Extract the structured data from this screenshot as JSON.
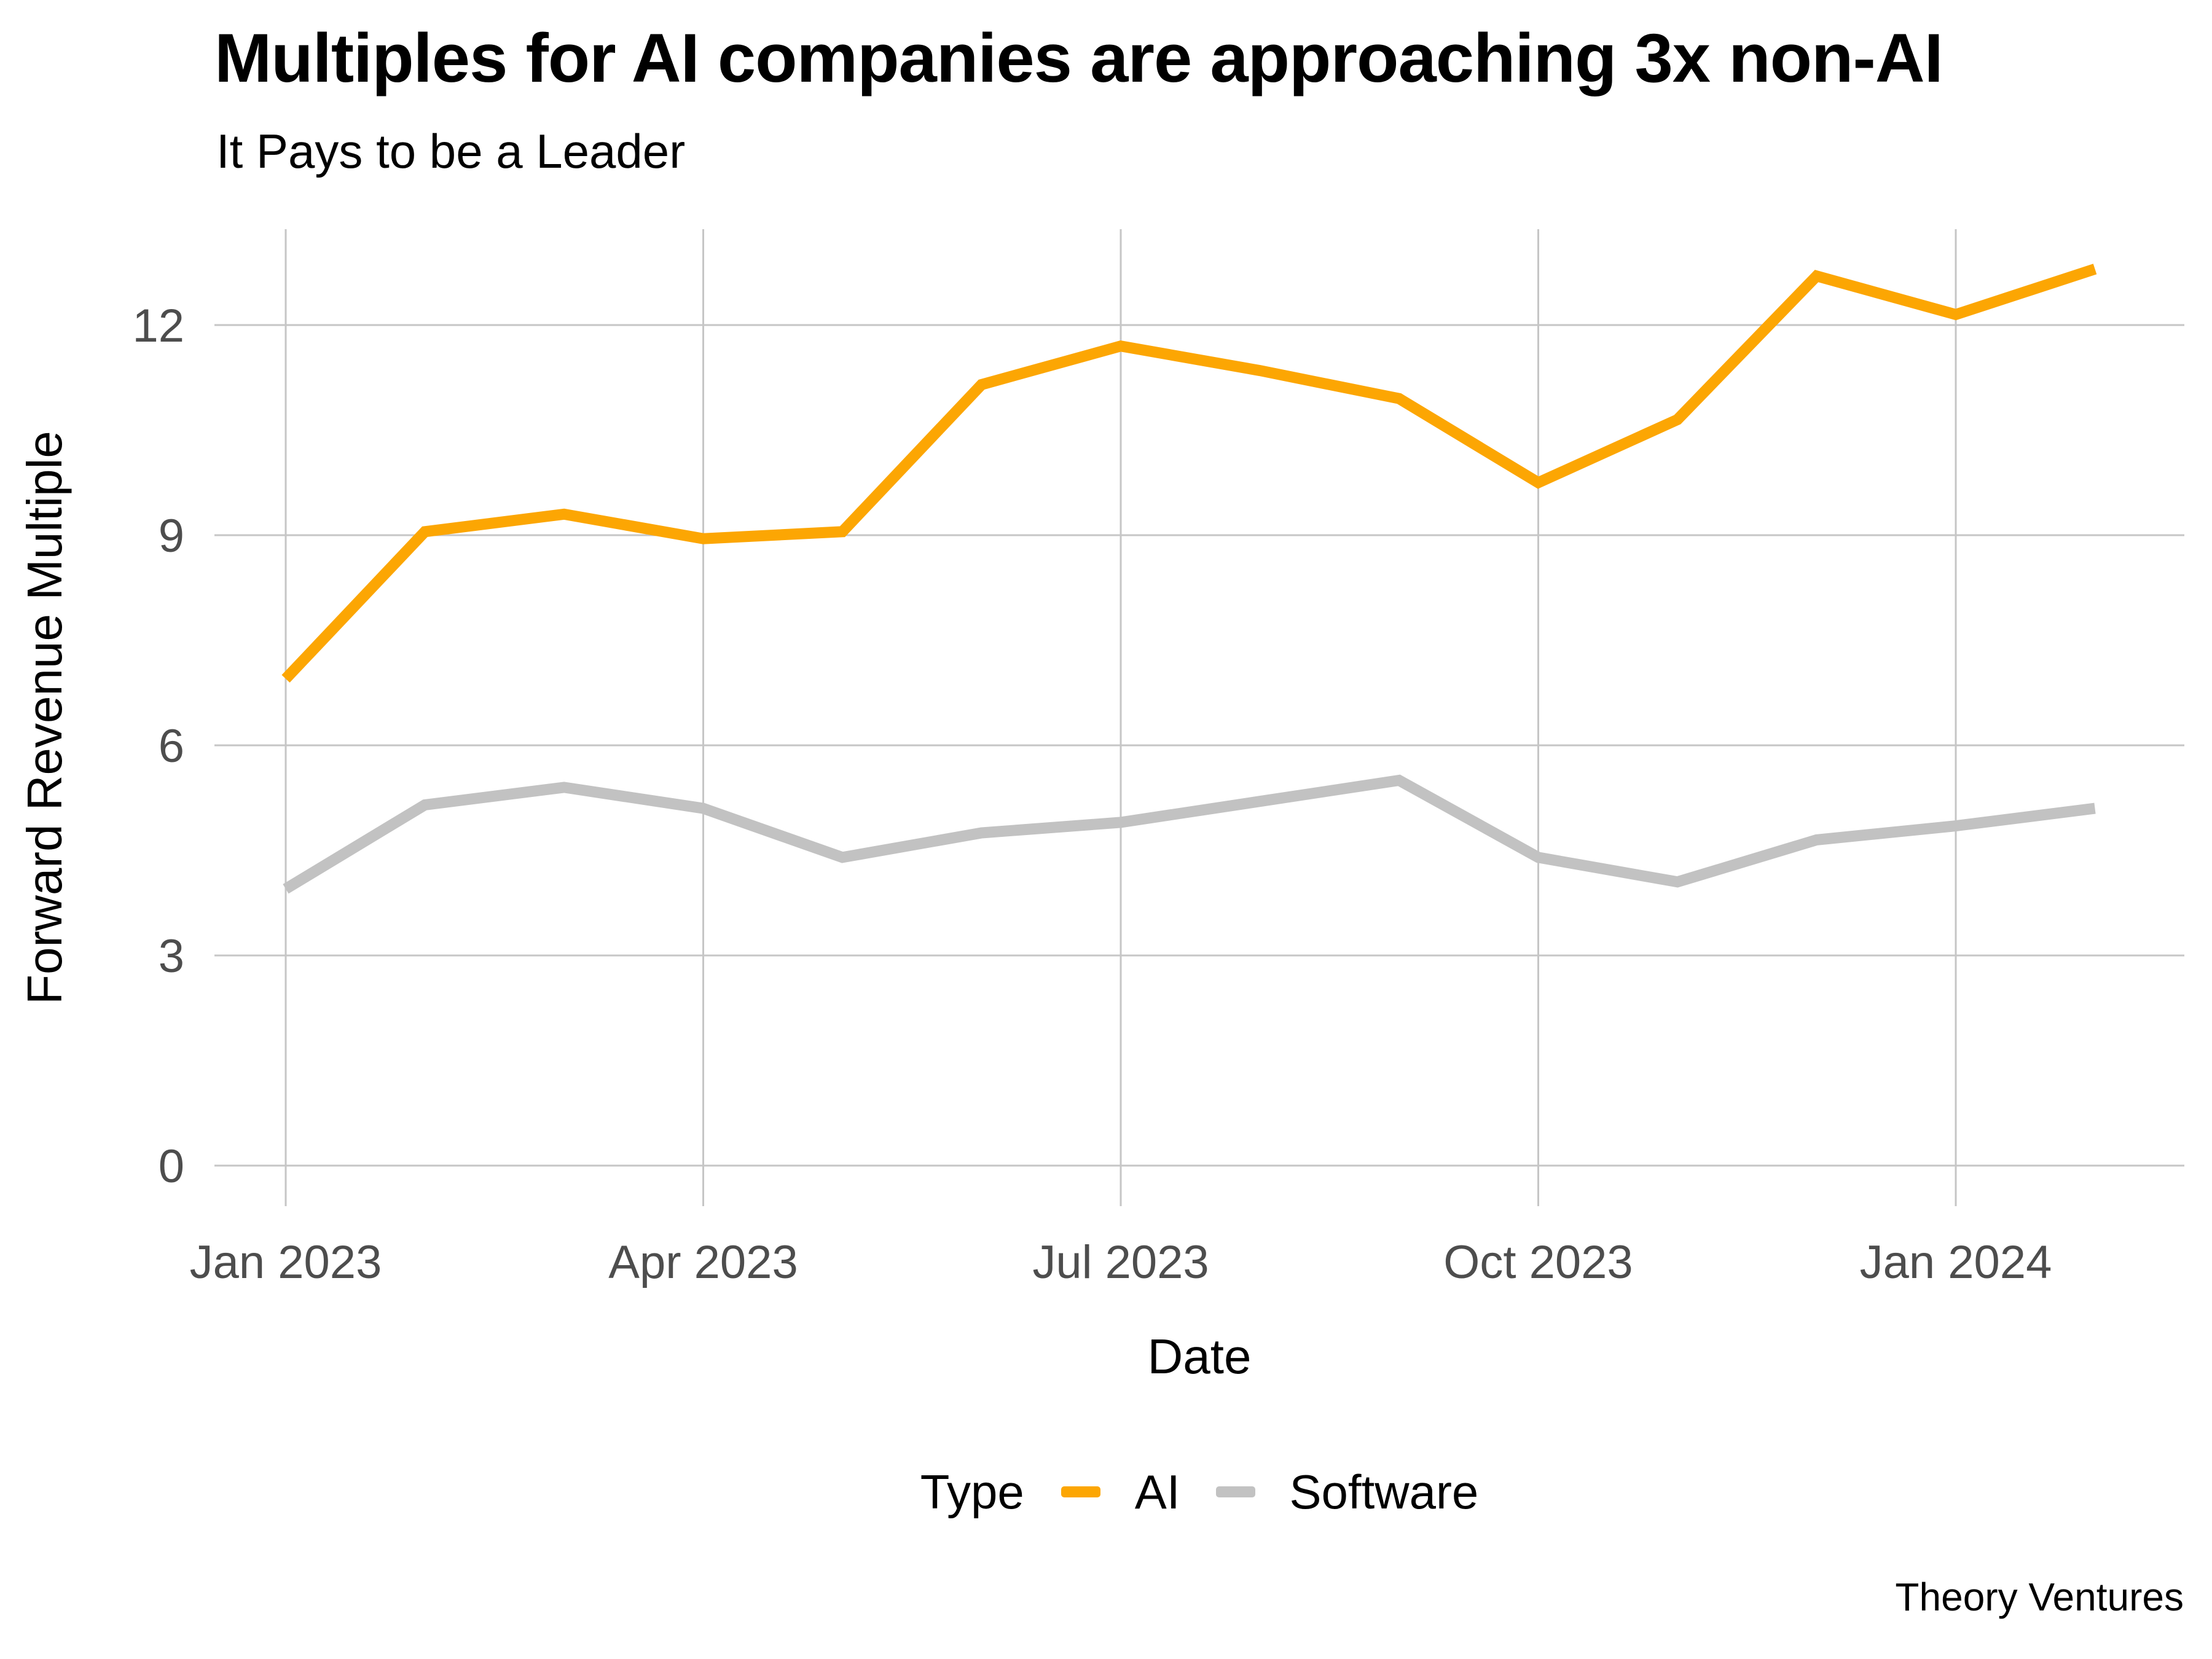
{
  "header": {
    "title": "Multiples for AI companies are approaching 3x non-AI",
    "subtitle": "It Pays to be a Leader"
  },
  "attribution": "Theory Ventures",
  "colors": {
    "ai_orange": "#FCA603",
    "software_gray": "#C2C2C2",
    "gridline": "#C6C6C6",
    "tick_label": "#4D4D4D",
    "text_black": "#000000",
    "background": "#FFFFFF"
  },
  "chart_data": {
    "type": "line",
    "title": "Multiples for AI companies are approaching 3x non-AI",
    "subtitle": "It Pays to be a Leader",
    "xlabel": "Date",
    "ylabel": "Forward Revenue Multiple",
    "legend_title": "Type",
    "legend_position": "bottom",
    "grid": true,
    "ylim": [
      0,
      13.4
    ],
    "y_ticks": [
      0,
      3,
      6,
      9,
      12
    ],
    "x_tick_labels": [
      "Jan 2023",
      "Apr 2023",
      "Jul 2023",
      "Oct 2023",
      "Jan 2024"
    ],
    "x_tick_month_index": [
      0,
      3,
      6,
      9,
      12
    ],
    "categories": [
      "Jan 2023",
      "Feb 2023",
      "Mar 2023",
      "Apr 2023",
      "May 2023",
      "Jun 2023",
      "Jul 2023",
      "Aug 2023",
      "Sep 2023",
      "Oct 2023",
      "Nov 2023",
      "Dec 2023",
      "Jan 2024",
      "Feb 2024"
    ],
    "series": [
      {
        "name": "AI",
        "color": "#FCA603",
        "values": [
          6.95,
          9.05,
          9.3,
          8.95,
          9.05,
          11.15,
          11.7,
          11.35,
          10.95,
          9.75,
          10.65,
          12.7,
          12.15,
          12.8
        ]
      },
      {
        "name": "Software",
        "color": "#C2C2C2",
        "values": [
          3.95,
          5.15,
          5.4,
          5.1,
          4.4,
          4.75,
          4.9,
          5.2,
          5.5,
          4.4,
          4.05,
          4.65,
          4.85,
          5.1
        ]
      }
    ]
  }
}
